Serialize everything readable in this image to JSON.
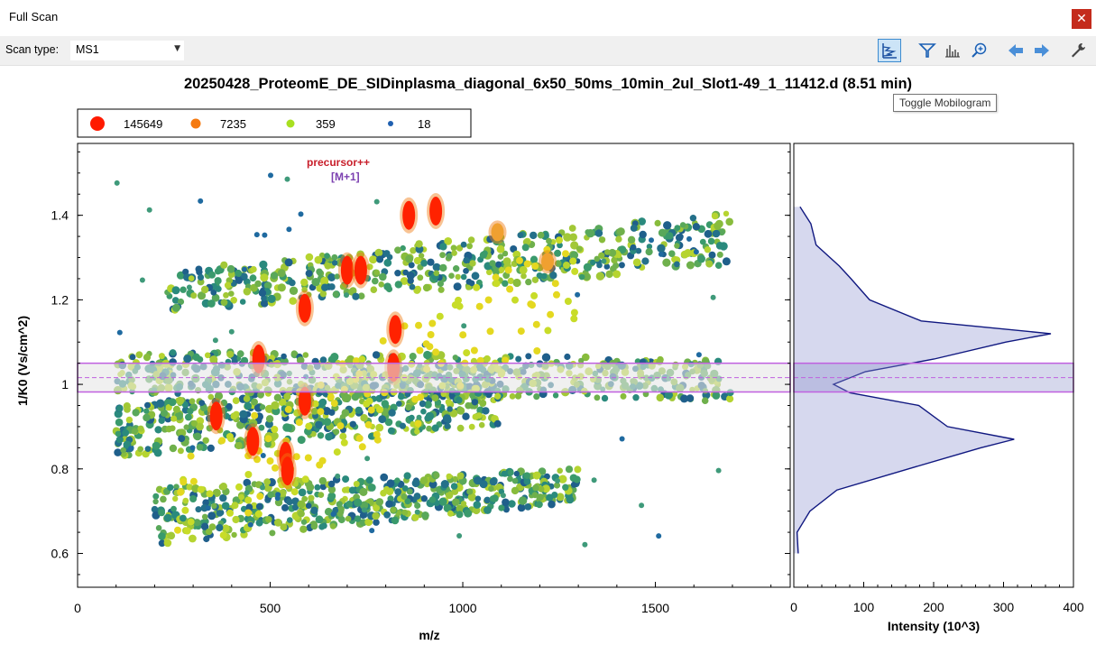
{
  "window": {
    "title": "Full Scan",
    "close_icon": "close-icon"
  },
  "toolbar": {
    "scan_type_label": "Scan type:",
    "scan_type_value": "MS1",
    "buttons": [
      {
        "name": "toggle-mobilogram-button",
        "icon": "mobilogram-icon",
        "active": true
      },
      {
        "name": "filter-button",
        "icon": "filter-icon",
        "active": false
      },
      {
        "name": "spectrum-button",
        "icon": "bar-chart-icon",
        "active": false
      },
      {
        "name": "zoom-button",
        "icon": "magnifier-plus-icon",
        "active": false
      },
      {
        "name": "previous-button",
        "icon": "arrow-left-icon",
        "active": false
      },
      {
        "name": "next-button",
        "icon": "arrow-right-icon",
        "active": false
      },
      {
        "name": "settings-button",
        "icon": "wrench-icon",
        "active": false
      }
    ],
    "tooltip": "Toggle Mobilogram"
  },
  "plot": {
    "title": "20250428_ProteomE_DE_SIDinplasma_diagonal_6x50_50ms_10min_2ul_Slot1-49_1_11412.d   (8.51 min)",
    "annotations": {
      "precursor": "precursor++",
      "m1": "[M+1]"
    },
    "legend": [
      {
        "label": "145649",
        "color": "#ff1a00"
      },
      {
        "label": "7235",
        "color": "#f57a10"
      },
      {
        "label": "359",
        "color": "#a8e020"
      },
      {
        "label": "18",
        "color": "#2060b0"
      }
    ],
    "colors": {
      "band_fill": "#e6e6e6",
      "band_border": "#c060e0",
      "mobilogram_line": "#101880",
      "mobilogram_fill": "#d6d8ee"
    }
  },
  "chart_data": [
    {
      "type": "scatter",
      "title": "20250428_ProteomE_DE_SIDinplasma_diagonal_6x50_50ms_10min_2ul_Slot1-49_1_11412.d   (8.51 min)",
      "xlabel": "m/z",
      "ylabel": "1/K0 (Vs/cm^2)",
      "xlim": [
        0,
        1850
      ],
      "ylim": [
        0.52,
        1.57
      ],
      "xticks": [
        0,
        500,
        1000,
        1500
      ],
      "yticks": [
        0.6,
        0.8,
        1,
        1.2,
        1.4
      ],
      "x_tick_labels": [
        "0",
        "500",
        "1000",
        "1500"
      ],
      "y_tick_labels": [
        "0.6",
        "0.8",
        "1",
        "1.2",
        "1.4"
      ],
      "legend": [
        {
          "label": "145649",
          "color": "#ff1a00"
        },
        {
          "label": "7235",
          "color": "#f57a10"
        },
        {
          "label": "359",
          "color": "#a8e020"
        },
        {
          "label": "18",
          "color": "#2060b0"
        }
      ],
      "selection_band": {
        "y_min": 0.982,
        "y_max": 1.05,
        "center": 1.016
      },
      "clusters": [
        {
          "name": "band-upper",
          "x_range": [
            230,
            1700
          ],
          "y_start": [
            1.17,
            1.27
          ],
          "y_end": [
            1.28,
            1.41
          ]
        },
        {
          "name": "band-middle",
          "x_range": [
            100,
            1700
          ],
          "y_start": [
            0.98,
            1.08
          ],
          "y_end": [
            0.96,
            1.06
          ]
        },
        {
          "name": "band-lower",
          "x_range": [
            100,
            1100
          ],
          "y_start": [
            0.83,
            0.95
          ],
          "y_end": [
            0.9,
            1.04
          ]
        },
        {
          "name": "band-bottom",
          "x_range": [
            200,
            1300
          ],
          "y_start": [
            0.62,
            0.76
          ],
          "y_end": [
            0.72,
            0.8
          ]
        }
      ],
      "highlights": [
        {
          "x": 360,
          "y": 0.925,
          "level": "high"
        },
        {
          "x": 470,
          "y": 1.06,
          "level": "high"
        },
        {
          "x": 455,
          "y": 0.865,
          "level": "high"
        },
        {
          "x": 540,
          "y": 0.83,
          "level": "high"
        },
        {
          "x": 545,
          "y": 0.795,
          "level": "high"
        },
        {
          "x": 590,
          "y": 0.96,
          "level": "high"
        },
        {
          "x": 590,
          "y": 1.18,
          "level": "high"
        },
        {
          "x": 700,
          "y": 1.27,
          "level": "high"
        },
        {
          "x": 735,
          "y": 1.27,
          "level": "high"
        },
        {
          "x": 825,
          "y": 1.13,
          "level": "high"
        },
        {
          "x": 820,
          "y": 1.04,
          "level": "high"
        },
        {
          "x": 860,
          "y": 1.4,
          "level": "high"
        },
        {
          "x": 930,
          "y": 1.41,
          "level": "high"
        },
        {
          "x": 1090,
          "y": 1.36,
          "level": "mid"
        },
        {
          "x": 1220,
          "y": 1.29,
          "level": "mid"
        }
      ]
    },
    {
      "type": "area",
      "title": "",
      "xlabel": "Intensity (10^3)",
      "ylabel": "",
      "xlim": [
        0,
        400
      ],
      "xticks": [
        0,
        100,
        200,
        300,
        400
      ],
      "x_tick_labels": [
        "0",
        "100",
        "200",
        "300",
        "400"
      ],
      "ylim": [
        0.52,
        1.57
      ],
      "profile": [
        {
          "y": 0.6,
          "x": 3
        },
        {
          "y": 0.65,
          "x": 8
        },
        {
          "y": 0.7,
          "x": 20
        },
        {
          "y": 0.75,
          "x": 60
        },
        {
          "y": 0.8,
          "x": 165
        },
        {
          "y": 0.85,
          "x": 270
        },
        {
          "y": 0.87,
          "x": 315
        },
        {
          "y": 0.9,
          "x": 220
        },
        {
          "y": 0.95,
          "x": 180
        },
        {
          "y": 0.98,
          "x": 80
        },
        {
          "y": 1.0,
          "x": 55
        },
        {
          "y": 1.03,
          "x": 100
        },
        {
          "y": 1.06,
          "x": 200
        },
        {
          "y": 1.1,
          "x": 300
        },
        {
          "y": 1.12,
          "x": 370
        },
        {
          "y": 1.15,
          "x": 180
        },
        {
          "y": 1.2,
          "x": 110
        },
        {
          "y": 1.25,
          "x": 80
        },
        {
          "y": 1.28,
          "x": 65
        },
        {
          "y": 1.33,
          "x": 35
        },
        {
          "y": 1.38,
          "x": 22
        },
        {
          "y": 1.42,
          "x": 5
        }
      ]
    }
  ]
}
